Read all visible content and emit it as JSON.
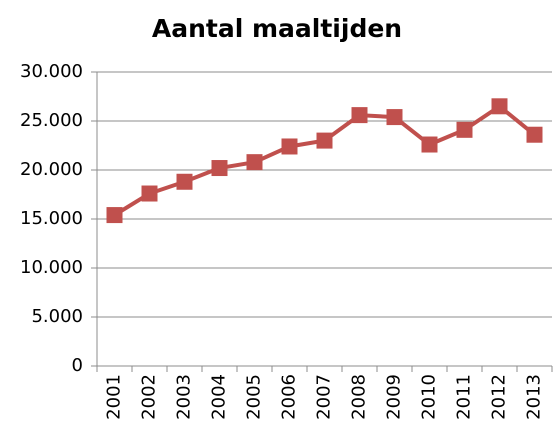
{
  "chart_data": {
    "type": "line",
    "title": "Aantal maaltijden",
    "categories": [
      "2001",
      "2002",
      "2003",
      "2004",
      "2005",
      "2006",
      "2007",
      "2008",
      "2009",
      "2010",
      "2011",
      "2012",
      "2013"
    ],
    "values": [
      15400,
      17600,
      18800,
      20200,
      20800,
      22400,
      23000,
      25600,
      25400,
      22600,
      24100,
      26500,
      23600
    ],
    "color": "#c0504d",
    "ylim": [
      0,
      30000
    ],
    "yticks": [
      0,
      {
        "value": 5000,
        "label": "5.000"
      },
      {
        "value": 10000,
        "label": "10.000"
      },
      {
        "value": 15000,
        "label": "15.000"
      },
      {
        "value": 20000,
        "label": "20.000"
      },
      {
        "value": 25000,
        "label": "25.000"
      },
      {
        "value": 30000,
        "label": "30.000"
      }
    ],
    "grid": true
  }
}
